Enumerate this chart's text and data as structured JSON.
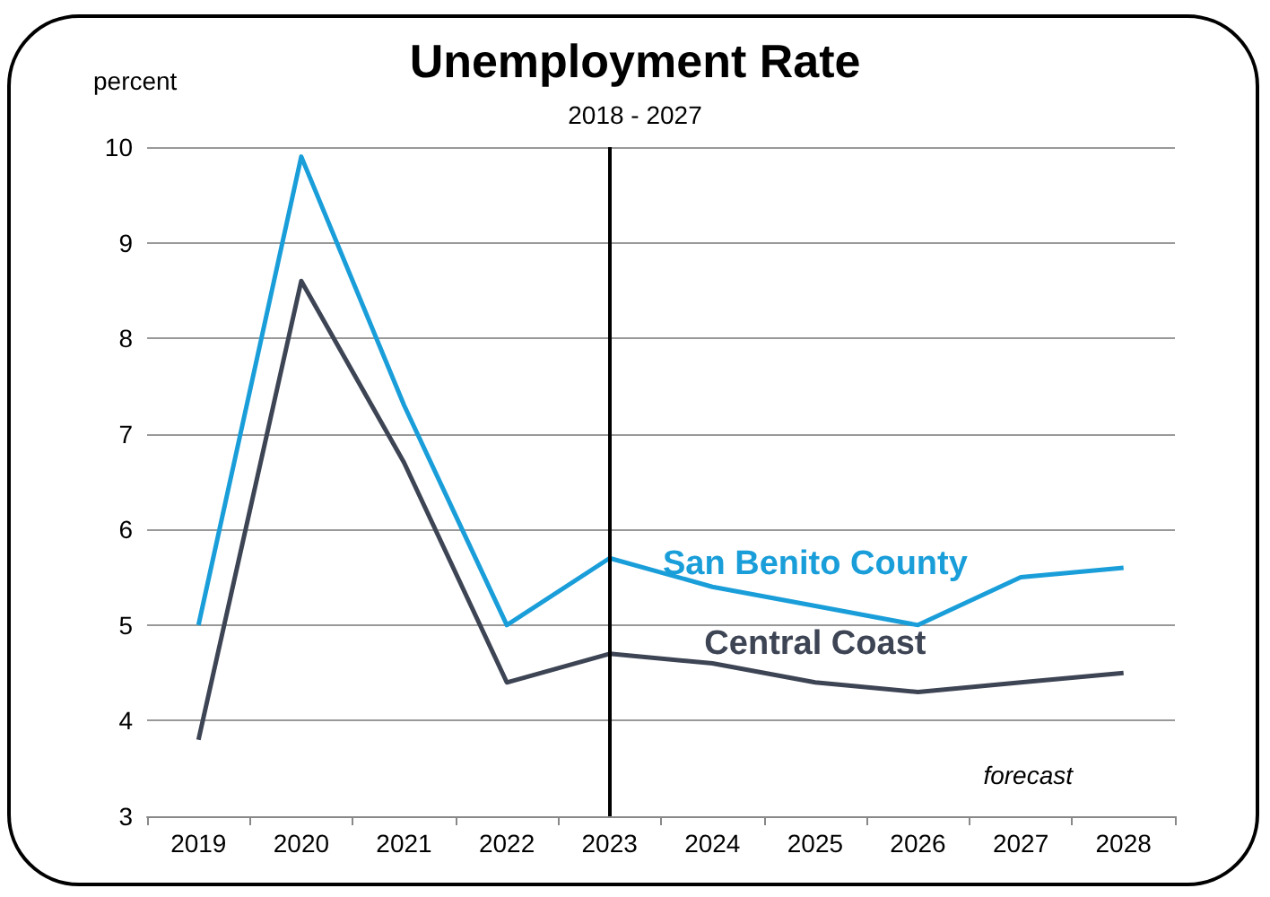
{
  "chart_data": {
    "type": "line",
    "title": "Unemployment Rate",
    "subtitle": "2018 - 2027",
    "ylabel": "percent",
    "categories": [
      "2019",
      "2020",
      "2021",
      "2022",
      "2023",
      "2024",
      "2025",
      "2026",
      "2027",
      "2028"
    ],
    "series": [
      {
        "name": "San Benito County",
        "color": "#1a9ed9",
        "values": [
          5.0,
          9.9,
          7.3,
          5.0,
          5.7,
          5.4,
          5.2,
          5.0,
          5.5,
          5.6
        ]
      },
      {
        "name": "Central Coast",
        "color": "#3d4454",
        "values": [
          3.8,
          8.6,
          6.7,
          4.4,
          4.7,
          4.6,
          4.4,
          4.3,
          4.4,
          4.5
        ]
      }
    ],
    "ylim": [
      3,
      10
    ],
    "yticks": [
      3,
      4,
      5,
      6,
      7,
      8,
      9,
      10
    ],
    "grid": "y",
    "legend": false,
    "marker": "none",
    "line_style": "solid",
    "ref_lines": [
      {
        "axis": "x",
        "value": "2023",
        "color": "#000000"
      }
    ],
    "annotations": [
      "forecast"
    ]
  }
}
